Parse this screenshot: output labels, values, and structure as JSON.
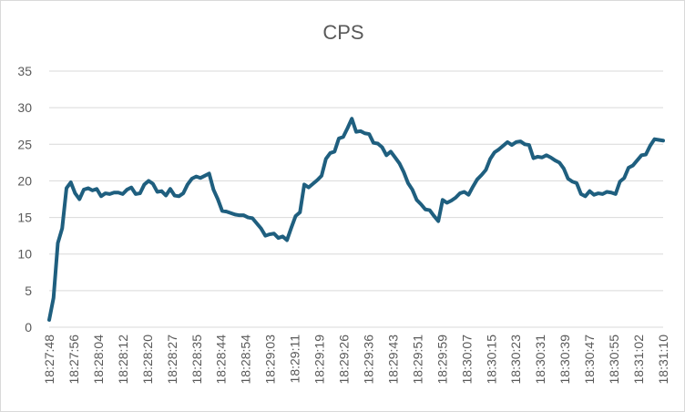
{
  "chart_data": {
    "type": "line",
    "title": "CPS",
    "xlabel": "",
    "ylabel": "",
    "ylim": [
      0,
      35
    ],
    "yticks": [
      0,
      5,
      10,
      15,
      20,
      25,
      30,
      35
    ],
    "grid": true,
    "legend": "none",
    "colors": {
      "line": "#1f5f7f",
      "grid": "#d9d9d9",
      "text": "#595959"
    },
    "xticks": [
      "18:27:48",
      "18:27:56",
      "18:28:04",
      "18:28:12",
      "18:28:20",
      "18:28:27",
      "18:28:35",
      "18:28:44",
      "18:28:54",
      "18:29:03",
      "18:29:11",
      "18:29:19",
      "18:29:26",
      "18:29:36",
      "18:29:43",
      "18:29:51",
      "18:29:59",
      "18:30:07",
      "18:30:15",
      "18:30:23",
      "18:30:31",
      "18:30:39",
      "18:30:47",
      "18:30:55",
      "18:31:02",
      "18:31:10"
    ],
    "series": [
      {
        "values": [
          1.0,
          4.0,
          11.5,
          13.5,
          19.0,
          19.8,
          18.3,
          17.5,
          18.8,
          19.0,
          18.7,
          18.9,
          17.9,
          18.3,
          18.2,
          18.4,
          18.4,
          18.2,
          18.8,
          19.1,
          18.2,
          18.3,
          19.5,
          20.0,
          19.6,
          18.5,
          18.6,
          18.0,
          18.9,
          18.0,
          17.9,
          18.3,
          19.5,
          20.3,
          20.6,
          20.4,
          20.7,
          21.0,
          18.8,
          17.5,
          15.9,
          15.8,
          15.6,
          15.4,
          15.3,
          15.3,
          15.0,
          14.9,
          14.2,
          13.5,
          12.5,
          12.7,
          12.8,
          12.2,
          12.4,
          11.9,
          13.6,
          15.2,
          15.7,
          19.5,
          19.1,
          19.6,
          20.1,
          20.7,
          23.0,
          23.8,
          24.0,
          25.8,
          26.0,
          27.2,
          28.5,
          26.7,
          26.8,
          26.5,
          26.4,
          25.2,
          25.1,
          24.6,
          23.5,
          24.0,
          23.2,
          22.4,
          21.2,
          19.7,
          18.8,
          17.4,
          16.8,
          16.1,
          16.0,
          15.2,
          14.5,
          17.4,
          17.0,
          17.3,
          17.7,
          18.3,
          18.5,
          18.1,
          19.2,
          20.2,
          20.8,
          21.5,
          23.0,
          23.9,
          24.3,
          24.8,
          25.3,
          24.9,
          25.3,
          25.4,
          25.0,
          24.9,
          23.1,
          23.3,
          23.2,
          23.5,
          23.2,
          22.8,
          22.5,
          21.7,
          20.3,
          19.9,
          19.7,
          18.2,
          17.9,
          18.6,
          18.1,
          18.3,
          18.2,
          18.5,
          18.4,
          18.2,
          19.9,
          20.4,
          21.8,
          22.1,
          22.8,
          23.5,
          23.6,
          24.8,
          25.7,
          25.6,
          25.5
        ]
      }
    ]
  }
}
